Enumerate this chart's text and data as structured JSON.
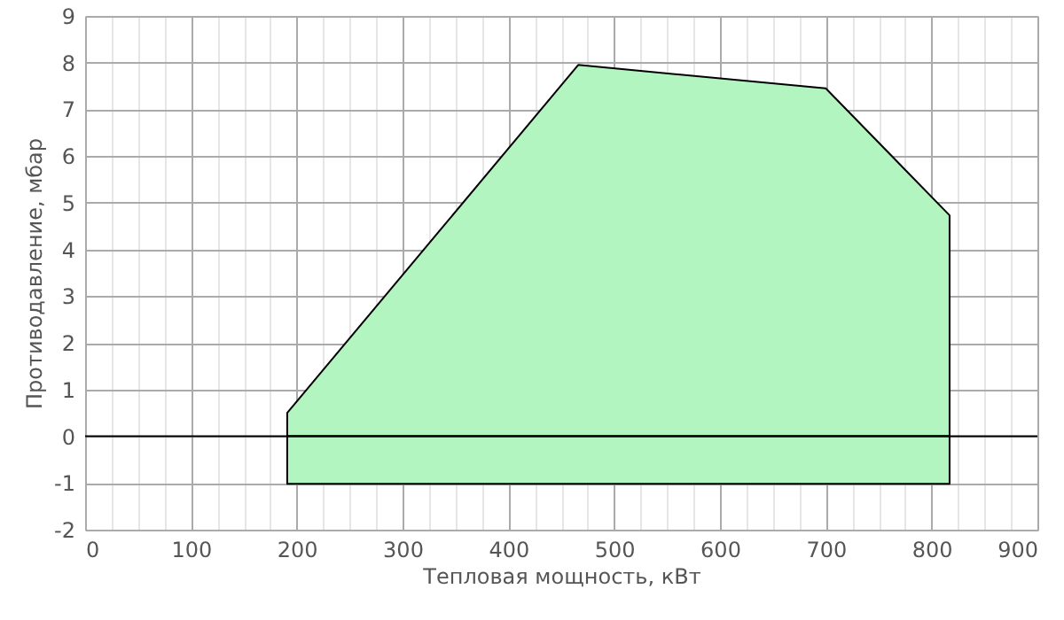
{
  "chart_data": {
    "type": "area",
    "xlabel": "Тепловая мощность, кВт",
    "ylabel": "Противодавление, мбар",
    "series": [
      {
        "color": "#b3f5c0",
        "x": [
          191,
          466,
          700,
          817
        ],
        "values": [
          0.5,
          7.95,
          7.45,
          4.73
        ]
      },
      {
        "color": "#b3f5c0",
        "x": [
          191,
          466,
          700,
          817
        ],
        "values": [
          -1.02,
          -1.02,
          -1.02,
          -1.02
        ]
      }
    ],
    "xlim": [
      0,
      900
    ],
    "xticks": [
      0,
      {
        "value": 25,
        "label": null
      },
      {
        "value": 50,
        "label": null
      },
      {
        "value": 75,
        "label": null
      },
      100,
      {
        "value": 125,
        "label": null
      },
      {
        "value": 150,
        "label": null
      },
      {
        "value": 175,
        "label": null
      },
      200,
      {
        "value": 225,
        "label": null
      },
      {
        "value": 250,
        "label": null
      },
      {
        "value": 275,
        "label": null
      },
      300,
      {
        "value": 325,
        "label": null
      },
      {
        "value": 350,
        "label": null
      },
      {
        "value": 375,
        "label": null
      },
      400,
      {
        "value": 425,
        "label": null
      },
      {
        "value": 450,
        "label": null
      },
      {
        "value": 475,
        "label": null
      },
      500,
      {
        "value": 525,
        "label": null
      },
      {
        "value": 550,
        "label": null
      },
      {
        "value": 575,
        "label": null
      },
      600,
      {
        "value": 625,
        "label": null
      },
      {
        "value": 650,
        "label": null
      },
      {
        "value": 675,
        "label": null
      },
      700,
      {
        "value": 725,
        "label": null
      },
      {
        "value": 750,
        "label": null
      },
      {
        "value": 775,
        "label": null
      },
      800,
      {
        "value": 825,
        "label": null
      },
      {
        "value": 850,
        "label": null
      },
      {
        "value": 875,
        "label": null
      },
      900
    ],
    "ylim": [
      -2,
      9
    ],
    "yticks": [
      -2,
      -1,
      0,
      1,
      2,
      3,
      4,
      5,
      6,
      7,
      8,
      9
    ],
    "ref_lines": [
      {
        "axis": "y",
        "value": 0,
        "color": "#000000"
      }
    ],
    "grid": true
  }
}
